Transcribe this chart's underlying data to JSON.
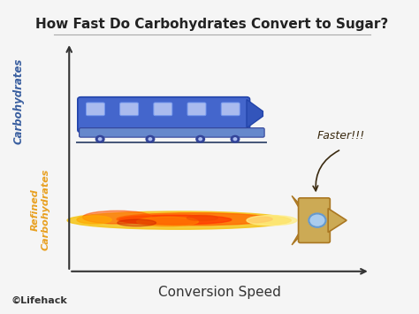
{
  "title": "How Fast Do Carbohydrates Convert to Sugar?",
  "xlabel": "Conversion Speed",
  "label_carbs": "Carbohydrates",
  "label_refined": "Refined\nCarbohydrates",
  "faster_text": "Faster!!!",
  "watermark": "©Lifehack",
  "bg_color": "#f5f5f5",
  "title_color": "#222222",
  "carbs_color": "#3a5fa0",
  "refined_color": "#e8a020",
  "axis_color": "#333333",
  "xlabel_color": "#333333",
  "faster_color": "#3a2a10"
}
